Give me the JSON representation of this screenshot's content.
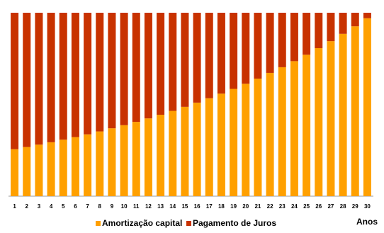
{
  "chart_data": {
    "type": "stacked_bar",
    "x_label": "Anos",
    "categories": [
      "1",
      "2",
      "3",
      "4",
      "5",
      "6",
      "7",
      "8",
      "9",
      "10",
      "11",
      "12",
      "13",
      "14",
      "15",
      "16",
      "17",
      "18",
      "19",
      "20",
      "21",
      "22",
      "23",
      "24",
      "25",
      "26",
      "27",
      "28",
      "29",
      "30"
    ],
    "series": [
      {
        "name": "Amortização capital",
        "color": "#FFA000",
        "values": [
          25.6,
          26.8,
          28.1,
          29.4,
          30.8,
          32.2,
          33.7,
          35.3,
          37.0,
          38.7,
          40.5,
          42.4,
          44.4,
          46.5,
          48.7,
          51.0,
          53.4,
          55.9,
          58.5,
          61.3,
          64.1,
          67.2,
          70.3,
          73.6,
          77.1,
          80.7,
          84.5,
          88.5,
          92.6,
          97.0
        ]
      },
      {
        "name": "Pagamento de Juros",
        "color": "#C83200",
        "values": [
          74.4,
          73.2,
          71.9,
          70.6,
          69.2,
          67.8,
          66.3,
          64.7,
          63.0,
          61.3,
          59.5,
          57.6,
          55.6,
          53.5,
          51.3,
          49.0,
          46.6,
          44.1,
          41.5,
          38.7,
          35.9,
          32.8,
          29.7,
          26.4,
          22.9,
          19.3,
          15.5,
          11.5,
          7.4,
          3.0
        ]
      }
    ],
    "ylim": [
      0,
      100
    ],
    "legend": "bottom"
  }
}
